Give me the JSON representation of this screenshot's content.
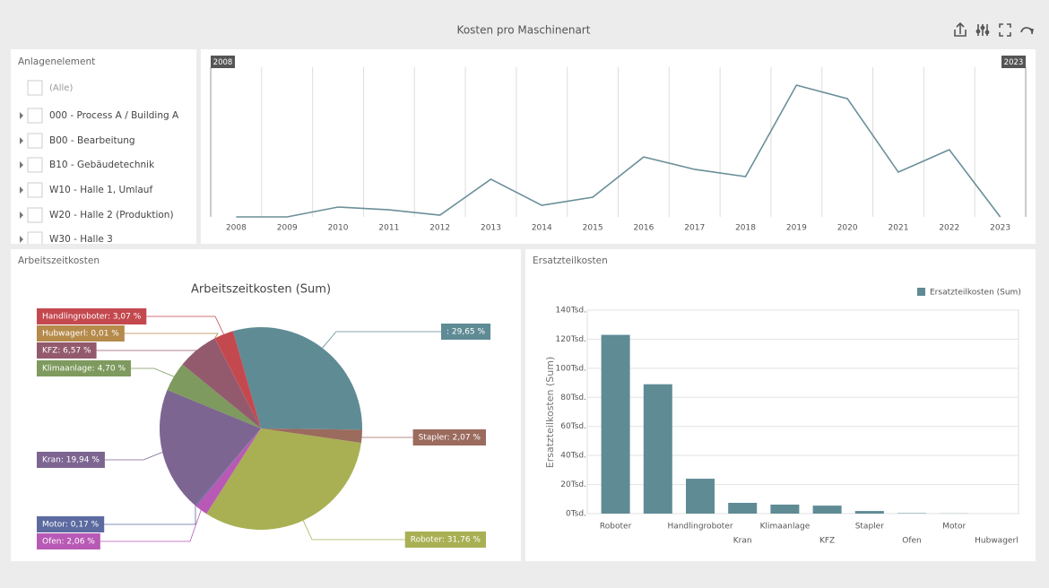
{
  "header": {
    "title": "Kosten pro Maschinenart"
  },
  "filter": {
    "title": "Anlagenelement",
    "items": [
      "(Alle)",
      "000 - Process A / Building A",
      "B00 - Bearbeitung",
      "B10 - Gebäudetechnik",
      "W10 - Halle 1, Umlauf",
      "W20 - Halle 2 (Produktion)",
      "W30 - Halle 3"
    ]
  },
  "chart_data": [
    {
      "type": "line",
      "range_start": "2008",
      "range_end": "2023",
      "categories": [
        "2008",
        "2009",
        "2010",
        "2011",
        "2012",
        "2013",
        "2014",
        "2015",
        "2016",
        "2017",
        "2018",
        "2019",
        "2020",
        "2021",
        "2022",
        "2023"
      ],
      "values": [
        0,
        0,
        7.9,
        5.7,
        1.4,
        30.2,
        9.3,
        15.8,
        48.1,
        38.1,
        32.3,
        105.6,
        94.8,
        35.9,
        53.9,
        0
      ],
      "color": "#6a8f99",
      "ylim": [
        0,
        120
      ]
    },
    {
      "type": "pie",
      "panel_title": "Arbeitszeitkosten",
      "title": "Arbeitszeitkosten (Sum)",
      "values": [
        29.65,
        2.07,
        31.76,
        2.06,
        0.17,
        19.94,
        4.7,
        6.57,
        0.01,
        3.07
      ],
      "value_labels": [
        ": 29,65 %",
        "Stapler: 2,07 %",
        "Roboter: 31,76 %",
        "Ofen: 2,06 %",
        "Motor: 0,17 %",
        "Kran: 19,94 %",
        "Klimaanlage: 4,70 %",
        "KFZ: 6,57 %",
        "Hubwagerl: 0,01 %",
        "Handlingroboter: 3,07 %"
      ],
      "colors": [
        "#5f8b95",
        "#9b6b5e",
        "#a8b053",
        "#b85ab5",
        "#5c6aa0",
        "#7d6591",
        "#7e9a5e",
        "#935a6e",
        "#b58a4a",
        "#c4494f"
      ]
    },
    {
      "type": "bar",
      "panel_title": "Ersatzteilkosten",
      "y_label": "Ersatzteilkosten (Sum)",
      "categories": [
        "Roboter",
        null,
        "Handlingroboter",
        "Kran",
        "Klimaanlage",
        "KFZ",
        "Stapler",
        "Ofen",
        "Motor",
        "Hubwagerl"
      ],
      "series": [
        {
          "name": "Ersatzteilkosten (Sum)",
          "color": "#5f8b95",
          "values": [
            123000,
            89000,
            24000,
            7400,
            6200,
            5500,
            1800,
            300,
            100,
            0
          ]
        }
      ],
      "ylim": [
        0,
        140000
      ],
      "yticks": [
        {
          "value": 0,
          "label": "0Tsd."
        },
        {
          "value": 20000,
          "label": "20Tsd."
        },
        {
          "value": 40000,
          "label": "40Tsd."
        },
        {
          "value": 60000,
          "label": "60Tsd."
        },
        {
          "value": 80000,
          "label": "80Tsd."
        },
        {
          "value": 100000,
          "label": "100Tsd."
        },
        {
          "value": 120000,
          "label": "120Tsd."
        },
        {
          "value": 140000,
          "label": "140Tsd."
        }
      ],
      "grid": true,
      "legend": "top-right"
    }
  ]
}
